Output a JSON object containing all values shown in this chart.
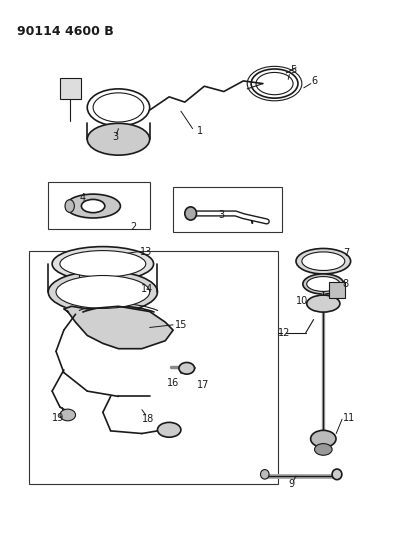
{
  "title": "90114 4600 B",
  "bg_color": "#ffffff",
  "line_color": "#1a1a1a",
  "fig_width": 3.93,
  "fig_height": 5.33,
  "dpi": 100
}
